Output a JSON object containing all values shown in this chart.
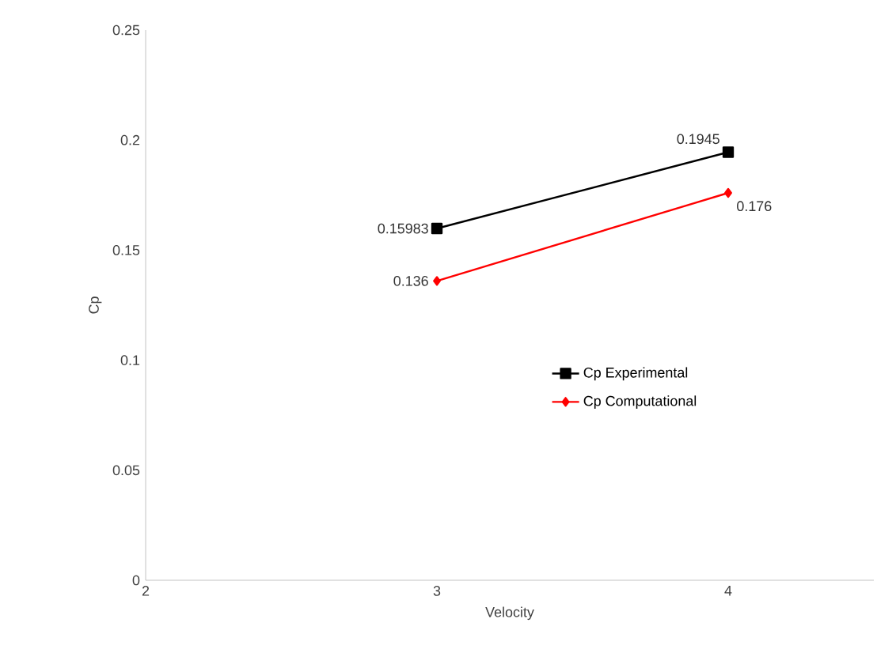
{
  "chart_data": {
    "type": "line",
    "xlabel": "Velocity",
    "ylabel": "Cp",
    "x": [
      3,
      4
    ],
    "series": [
      {
        "name": "Cp Experimental",
        "color": "#000000",
        "values": [
          0.15983,
          0.1945
        ],
        "marker": "square",
        "value_labels": [
          "0.15983",
          "0.1945"
        ]
      },
      {
        "name": "Cp Computational",
        "color": "#ff0000",
        "values": [
          0.136,
          0.176
        ],
        "marker": "diamond",
        "value_labels": [
          "0.136",
          "0.176"
        ]
      }
    ],
    "xlim": [
      2,
      4.5
    ],
    "xticks": [
      2,
      3,
      4
    ],
    "ylim": [
      0,
      0.25
    ],
    "yticks": [
      0,
      0.05,
      {
        "value": 0.1,
        "label": "0.1"
      },
      0.15,
      {
        "value": 0.2,
        "label": "0.2"
      },
      0.25
    ],
    "grid": false,
    "legend": "right"
  }
}
